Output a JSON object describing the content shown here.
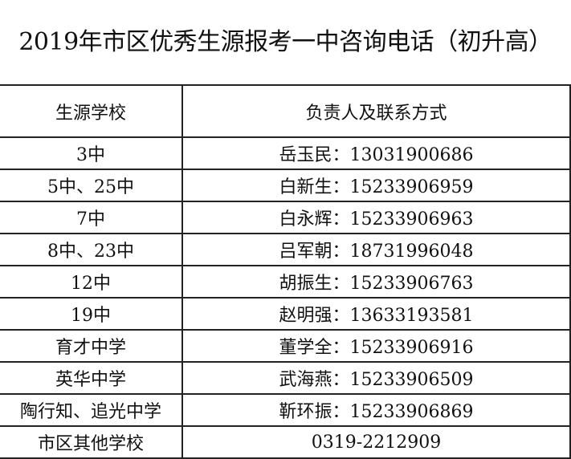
{
  "title": "2019年市区优秀生源报考一中咨询电话（初升高）",
  "headers": {
    "school": "生源学校",
    "contact": "负责人及联系方式"
  },
  "rows": [
    {
      "school": "3中",
      "contact": "岳玉民：13031900686"
    },
    {
      "school": "5中、25中",
      "contact": "白新生：15233906959"
    },
    {
      "school": "7中",
      "contact": "白永辉：15233906963"
    },
    {
      "school": "8中、23中",
      "contact": "吕军朝：18731996048"
    },
    {
      "school": "12中",
      "contact": "胡振生：15233906763"
    },
    {
      "school": "19中",
      "contact": "赵明强：13633193581"
    },
    {
      "school": "育才中学",
      "contact": "董学全：15233906916"
    },
    {
      "school": "英华中学",
      "contact": "武海燕：15233906509"
    },
    {
      "school": "陶行知、追光中学",
      "contact": "靳环振：15233906869"
    },
    {
      "school": "市区其他学校",
      "contact": "0319-2212909"
    }
  ]
}
